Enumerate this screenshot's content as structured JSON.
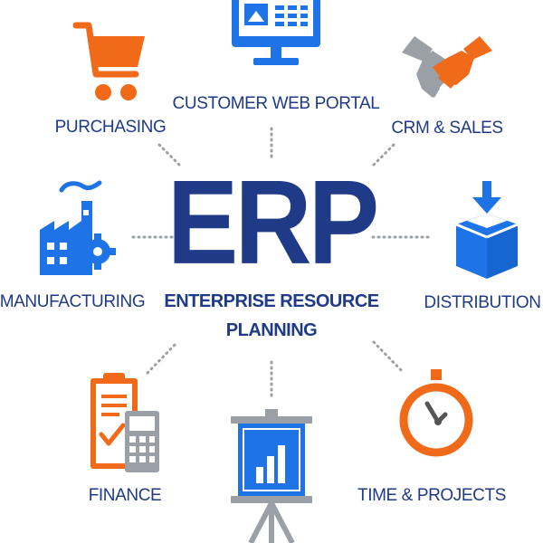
{
  "center": {
    "title": "ERP",
    "subtitle_line1": "ENTERPRISE RESOURCE",
    "subtitle_line2": "PLANNING"
  },
  "modules": {
    "customer_web_portal": "CUSTOMER WEB PORTAL",
    "purchasing": "PURCHASING",
    "crm_sales": "CRM & SALES",
    "manufacturing": "MANUFACTURING",
    "distribution": "DISTRIBUTION",
    "finance": "FINANCE",
    "time_projects": "TIME & PROJECTS"
  },
  "icons": {
    "customer_web_portal": "monitor-icon",
    "purchasing": "shopping-cart-icon",
    "crm_sales": "handshake-icon",
    "manufacturing": "factory-icon",
    "distribution": "box-icon",
    "finance": "clipboard-calculator-icon",
    "time_projects": "clock-icon",
    "reporting": "presentation-chart-icon"
  },
  "colors": {
    "blue": "#1e74e6",
    "navy": "#1f3b87",
    "orange": "#f06a1a",
    "gray": "#9aa0a6"
  }
}
